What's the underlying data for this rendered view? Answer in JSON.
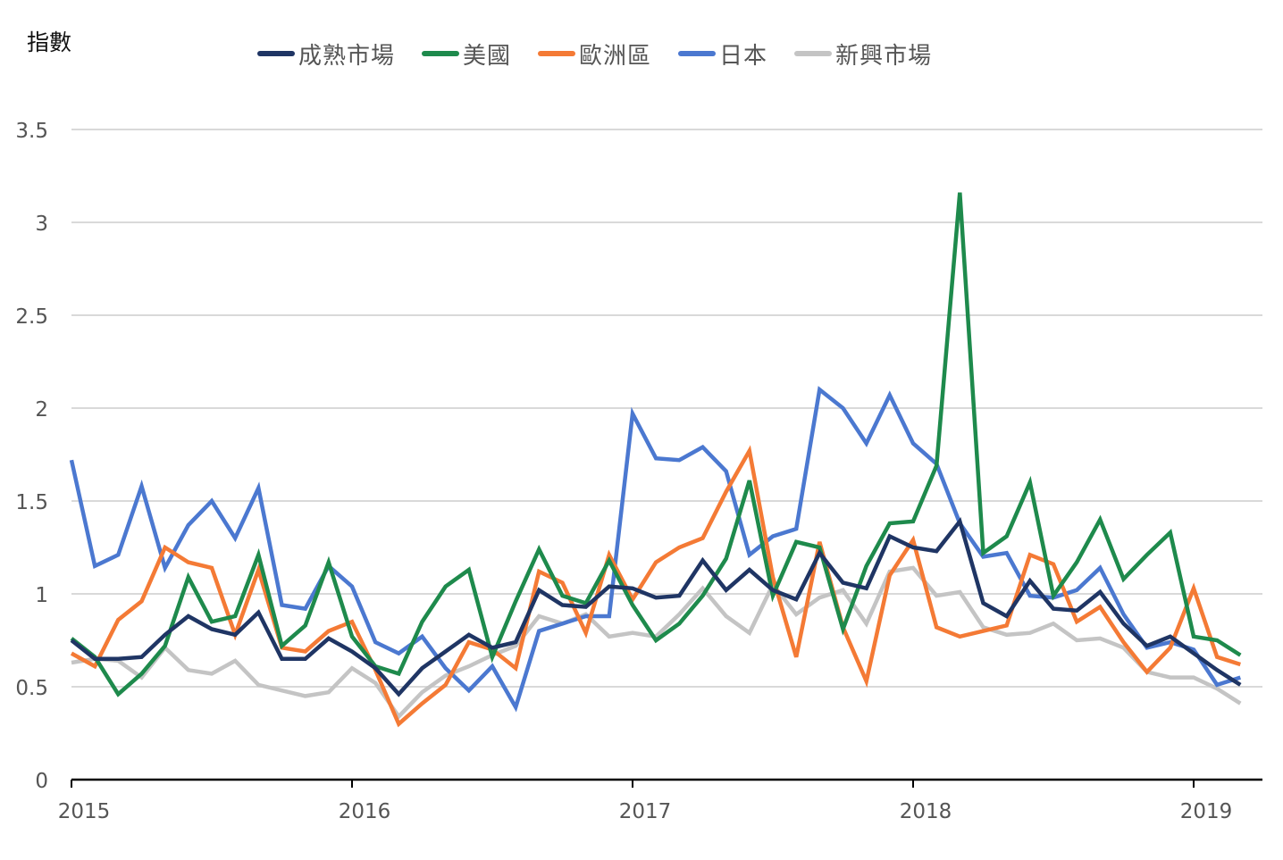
{
  "chart_data": {
    "type": "line",
    "title": "",
    "xlabel": "",
    "ylabel": "指數",
    "ylim": [
      0,
      3.5
    ],
    "yticks": [
      "0",
      "0.5",
      "1",
      "1.5",
      "2",
      "2.5",
      "3",
      "3.5"
    ],
    "xticks": [
      "2015",
      "2016",
      "2017",
      "2018",
      "2019"
    ],
    "grid": true,
    "legend_position": "top",
    "x_start": "2015-01",
    "x_frequency": "monthly",
    "x_count": 51,
    "series": [
      {
        "name": "成熟市場",
        "color": "#1f3564",
        "values": [
          0.75,
          0.65,
          0.65,
          0.66,
          0.78,
          0.88,
          0.81,
          0.78,
          0.9,
          0.65,
          0.65,
          0.76,
          0.69,
          0.6,
          0.46,
          0.6,
          0.69,
          0.78,
          0.71,
          0.74,
          1.02,
          0.94,
          0.93,
          1.04,
          1.03,
          0.98,
          0.99,
          1.18,
          1.02,
          1.13,
          1.02,
          0.97,
          1.22,
          1.06,
          1.03,
          1.31,
          1.25,
          1.23,
          1.39,
          0.95,
          0.88,
          1.07,
          0.92,
          0.91,
          1.01,
          0.84,
          0.72,
          0.77,
          0.68,
          0.59,
          0.51
        ]
      },
      {
        "name": "美國",
        "color": "#1e8a4c",
        "values": [
          0.76,
          0.66,
          0.46,
          0.57,
          0.72,
          1.09,
          0.85,
          0.88,
          1.21,
          0.72,
          0.83,
          1.17,
          0.77,
          0.61,
          0.57,
          0.85,
          1.04,
          1.13,
          0.66,
          0.96,
          1.24,
          0.99,
          0.95,
          1.18,
          0.94,
          0.75,
          0.84,
          0.99,
          1.19,
          1.61,
          0.99,
          1.28,
          1.25,
          0.81,
          1.15,
          1.38,
          1.39,
          1.69,
          3.16,
          1.22,
          1.31,
          1.6,
          0.99,
          1.17,
          1.4,
          1.08,
          1.21,
          1.33,
          0.77,
          0.75,
          0.67
        ]
      },
      {
        "name": "歐洲區",
        "color": "#f47a35",
        "values": [
          0.68,
          0.61,
          0.86,
          0.96,
          1.25,
          1.17,
          1.14,
          0.78,
          1.13,
          0.71,
          0.69,
          0.8,
          0.85,
          0.59,
          0.3,
          0.41,
          0.51,
          0.74,
          0.7,
          0.6,
          1.12,
          1.06,
          0.79,
          1.21,
          0.97,
          1.17,
          1.25,
          1.3,
          1.55,
          1.77,
          1.09,
          0.66,
          1.28,
          0.82,
          0.53,
          1.1,
          1.29,
          0.82,
          0.77,
          0.8,
          0.83,
          1.21,
          1.16,
          0.85,
          0.93,
          0.74,
          0.58,
          0.71,
          1.03,
          0.66,
          0.62
        ]
      },
      {
        "name": "日本",
        "color": "#4b78d0",
        "values": [
          1.72,
          1.15,
          1.21,
          1.58,
          1.14,
          1.37,
          1.5,
          1.3,
          1.57,
          0.94,
          0.92,
          1.15,
          1.04,
          0.74,
          0.68,
          0.77,
          0.6,
          0.48,
          0.61,
          0.39,
          0.8,
          0.84,
          0.88,
          0.88,
          1.97,
          1.73,
          1.72,
          1.79,
          1.66,
          1.21,
          1.31,
          1.35,
          2.1,
          2.0,
          1.81,
          2.07,
          1.81,
          1.7,
          1.38,
          1.2,
          1.22,
          0.99,
          0.98,
          1.02,
          1.14,
          0.89,
          0.71,
          0.74,
          0.7,
          0.51,
          0.55
        ]
      },
      {
        "name": "新興市場",
        "color": "#c4c4c4",
        "values": [
          0.63,
          0.65,
          0.64,
          0.55,
          0.71,
          0.59,
          0.57,
          0.64,
          0.51,
          0.48,
          0.45,
          0.47,
          0.6,
          0.52,
          0.34,
          0.47,
          0.56,
          0.61,
          0.67,
          0.72,
          0.88,
          0.84,
          0.89,
          0.77,
          0.79,
          0.77,
          0.89,
          1.03,
          0.88,
          0.79,
          1.05,
          0.89,
          0.98,
          1.02,
          0.84,
          1.12,
          1.14,
          0.99,
          1.01,
          0.82,
          0.78,
          0.79,
          0.84,
          0.75,
          0.76,
          0.71,
          0.58,
          0.55,
          0.55,
          0.49,
          0.41
        ]
      }
    ]
  },
  "axis": {
    "y_title": "指數",
    "y_ticks": [
      "0",
      "0.5",
      "1",
      "1.5",
      "2",
      "2.5",
      "3",
      "3.5"
    ],
    "x_ticks": [
      "2015",
      "2016",
      "2017",
      "2018",
      "2019"
    ]
  },
  "legend": {
    "items": [
      {
        "label": "成熟市場",
        "color": "#1f3564"
      },
      {
        "label": "美國",
        "color": "#1e8a4c"
      },
      {
        "label": "歐洲區",
        "color": "#f47a35"
      },
      {
        "label": "日本",
        "color": "#4b78d0"
      },
      {
        "label": "新興市場",
        "color": "#c4c4c4"
      }
    ]
  }
}
